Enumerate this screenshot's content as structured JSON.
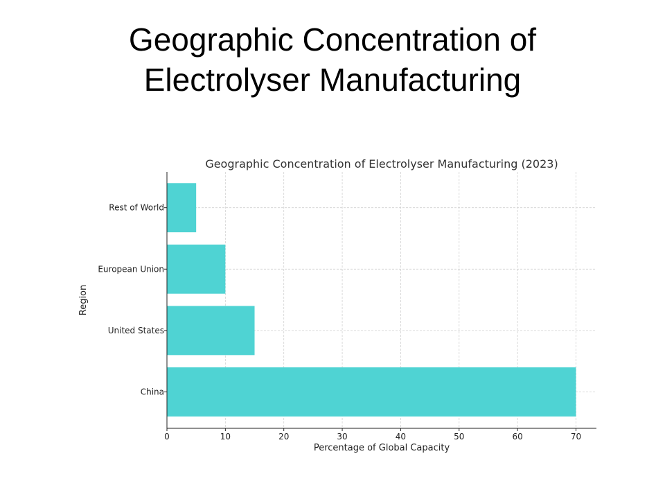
{
  "slide": {
    "title_line1": "Geographic Concentration of",
    "title_line2": "Electrolyser Manufacturing"
  },
  "chart_data": {
    "type": "bar",
    "orientation": "horizontal",
    "title": "Geographic Concentration of Electrolyser Manufacturing (2023)",
    "xlabel": "Percentage of Global Capacity",
    "ylabel": "Region",
    "categories": [
      "China",
      "United States",
      "European Union",
      "Rest of World"
    ],
    "values": [
      70,
      15,
      10,
      5
    ],
    "xlim": [
      0,
      73.5
    ],
    "xticks": [
      0,
      10,
      20,
      30,
      40,
      50,
      60,
      70
    ],
    "grid": true,
    "bar_color": "#4fd3d3"
  }
}
